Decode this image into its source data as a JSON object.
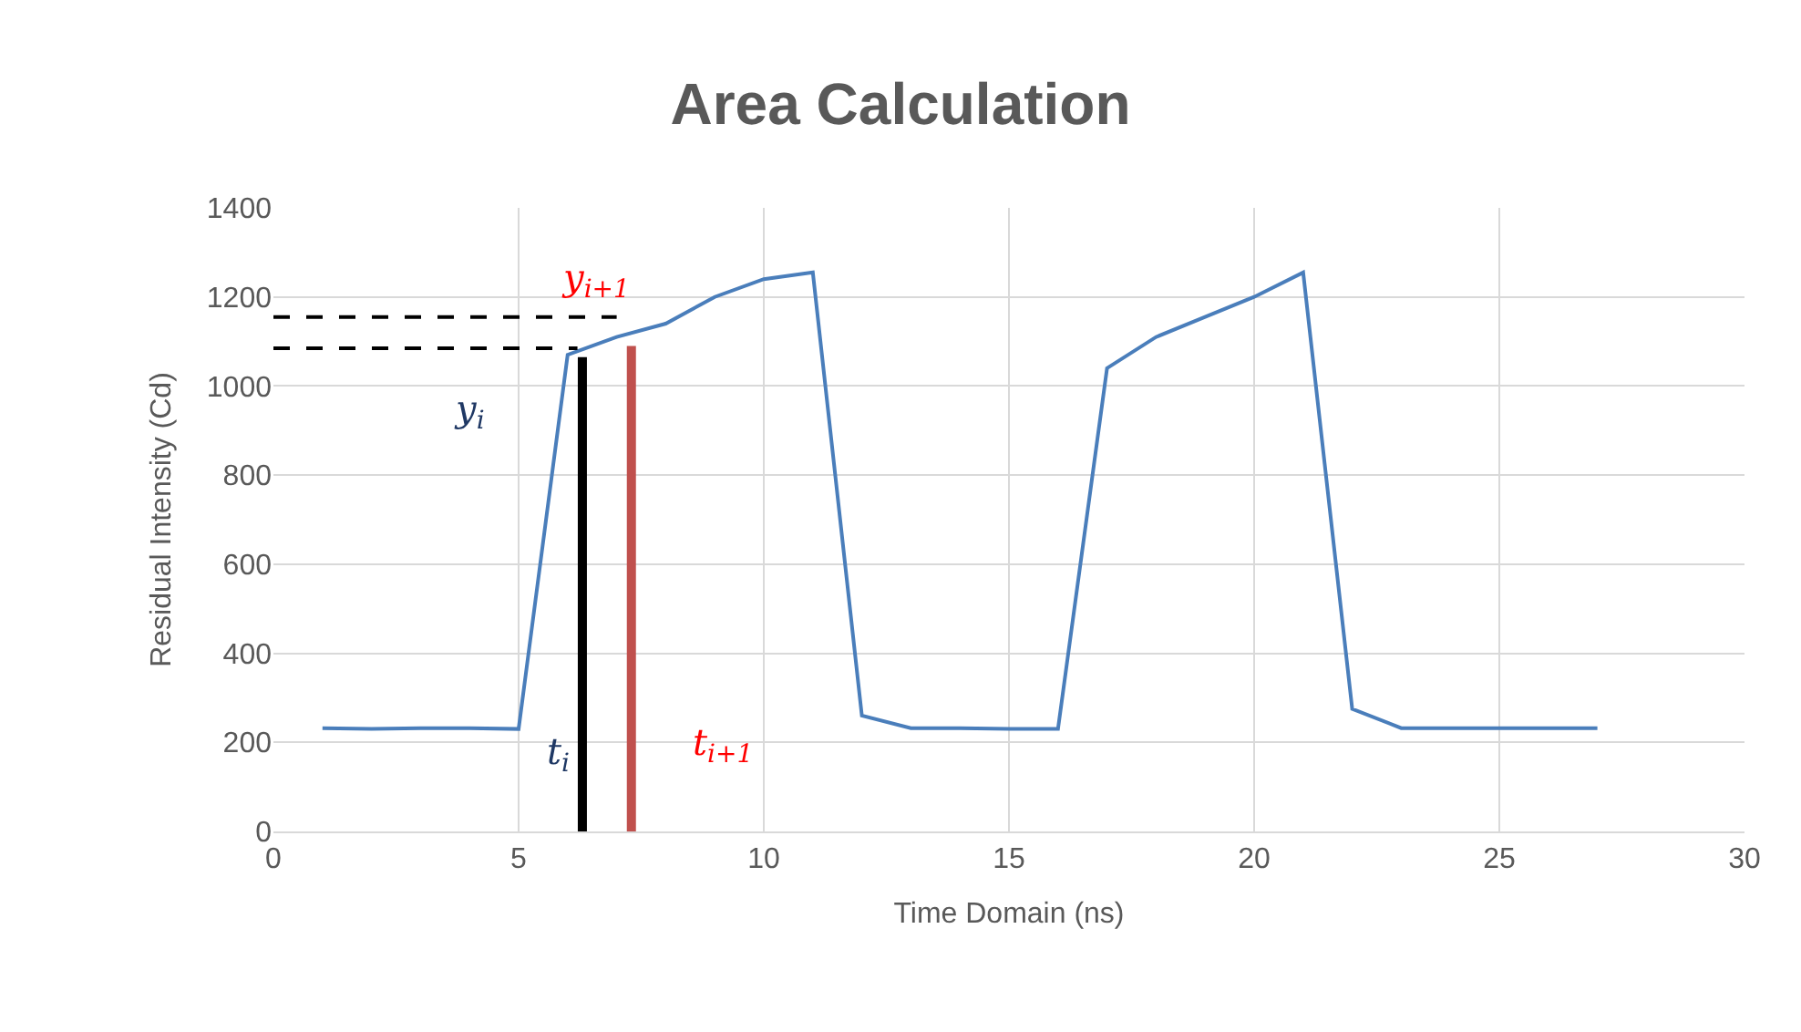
{
  "chart_data": {
    "type": "line",
    "title": "Area Calculation",
    "xlabel": "Time Domain (ns)",
    "ylabel": "Residual Intensity (Cd)",
    "xlim": [
      0,
      30
    ],
    "xticks": [
      0,
      5,
      10,
      15,
      20,
      25,
      30
    ],
    "ylim": [
      0,
      1400
    ],
    "yticks": [
      0,
      200,
      400,
      600,
      800,
      1000,
      1200,
      1400
    ],
    "grid": true,
    "marker": "none",
    "series": [
      {
        "color": "#4a7ebb",
        "x": [
          1,
          2,
          3,
          4,
          5,
          6,
          7,
          8,
          9,
          10,
          11,
          12,
          13,
          14,
          15,
          16,
          17,
          18,
          19,
          20,
          21,
          22,
          23,
          24,
          25,
          26,
          27
        ],
        "values": [
          232,
          230,
          232,
          232,
          230,
          1070,
          1110,
          1140,
          1200,
          1240,
          1255,
          260,
          232,
          232,
          230,
          230,
          1040,
          1110,
          1155,
          1200,
          1255,
          275,
          232,
          232,
          232,
          232,
          232
        ]
      },
      {
        "type": "line",
        "color": "#000000",
        "x": [
          6.3,
          6.3
        ],
        "values": [
          0,
          1065
        ]
      },
      {
        "type": "line",
        "color": "#c0504d",
        "x": [
          7.3,
          7.3
        ],
        "values": [
          0,
          1090
        ]
      },
      {
        "type": "line",
        "color": "#000000",
        "line_style": "dashed",
        "x": [
          0,
          6.2
        ],
        "values": [
          1085,
          1085
        ]
      },
      {
        "type": "line",
        "color": "#000000",
        "line_style": "dashed",
        "x": [
          0,
          7.0
        ],
        "values": [
          1155,
          1155
        ]
      }
    ],
    "annotations": [
      "y$_{i}$",
      "y$_{i+1}$",
      "t$_{i}$",
      "t$_{i+1}$"
    ]
  }
}
